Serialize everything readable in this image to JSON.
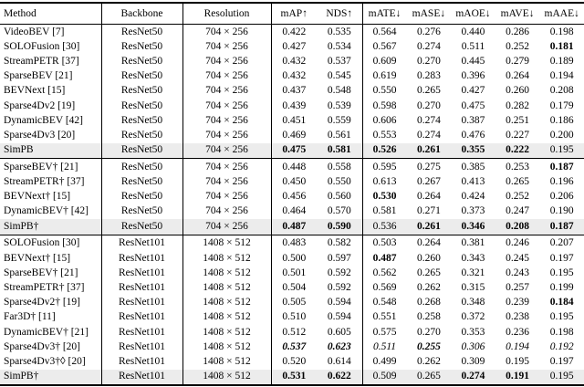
{
  "colors": {
    "highlight_row": "#ececec",
    "rule": "#000000",
    "text": "#000000",
    "background": "#ffffff"
  },
  "table": {
    "columns": [
      {
        "key": "method",
        "label": "Method"
      },
      {
        "key": "backbone",
        "label": "Backbone"
      },
      {
        "key": "resolution",
        "label": "Resolution"
      },
      {
        "key": "map",
        "label": "mAP↑"
      },
      {
        "key": "nds",
        "label": "NDS↑"
      },
      {
        "key": "mate",
        "label": "mATE↓"
      },
      {
        "key": "mase",
        "label": "mASE↓"
      },
      {
        "key": "maoe",
        "label": "mAOE↓"
      },
      {
        "key": "mave",
        "label": "mAVE↓"
      },
      {
        "key": "maae",
        "label": "mAAE↓"
      }
    ],
    "sections": [
      {
        "rows": [
          {
            "method": "VideoBEV [7]",
            "backbone": "ResNet50",
            "resolution": "704 × 256",
            "values": [
              "0.422",
              "0.535",
              "0.564",
              "0.276",
              "0.440",
              "0.286",
              "0.198"
            ],
            "styles": [
              "",
              "",
              "",
              "",
              "",
              "",
              ""
            ],
            "highlight": false
          },
          {
            "method": "SOLOFusion [30]",
            "backbone": "ResNet50",
            "resolution": "704 × 256",
            "values": [
              "0.427",
              "0.534",
              "0.567",
              "0.274",
              "0.511",
              "0.252",
              "0.181"
            ],
            "styles": [
              "",
              "",
              "",
              "",
              "",
              "",
              "b"
            ],
            "highlight": false
          },
          {
            "method": "StreamPETR [37]",
            "backbone": "ResNet50",
            "resolution": "704 × 256",
            "values": [
              "0.432",
              "0.537",
              "0.609",
              "0.270",
              "0.445",
              "0.279",
              "0.189"
            ],
            "styles": [
              "",
              "",
              "",
              "",
              "",
              "",
              ""
            ],
            "highlight": false
          },
          {
            "method": "SparseBEV [21]",
            "backbone": "ResNet50",
            "resolution": "704 × 256",
            "values": [
              "0.432",
              "0.545",
              "0.619",
              "0.283",
              "0.396",
              "0.264",
              "0.194"
            ],
            "styles": [
              "",
              "",
              "",
              "",
              "",
              "",
              ""
            ],
            "highlight": false
          },
          {
            "method": "BEVNext [15]",
            "backbone": "ResNet50",
            "resolution": "704 × 256",
            "values": [
              "0.437",
              "0.548",
              "0.550",
              "0.265",
              "0.427",
              "0.260",
              "0.208"
            ],
            "styles": [
              "",
              "",
              "",
              "",
              "",
              "",
              ""
            ],
            "highlight": false
          },
          {
            "method": "Sparse4Dv2 [19]",
            "backbone": "ResNet50",
            "resolution": "704 × 256",
            "values": [
              "0.439",
              "0.539",
              "0.598",
              "0.270",
              "0.475",
              "0.282",
              "0.179"
            ],
            "styles": [
              "",
              "",
              "",
              "",
              "",
              "",
              ""
            ],
            "highlight": false
          },
          {
            "method": "DynamicBEV [42]",
            "backbone": "ResNet50",
            "resolution": "704 × 256",
            "values": [
              "0.451",
              "0.559",
              "0.606",
              "0.274",
              "0.387",
              "0.251",
              "0.186"
            ],
            "styles": [
              "",
              "",
              "",
              "",
              "",
              "",
              ""
            ],
            "highlight": false
          },
          {
            "method": "Sparse4Dv3 [20]",
            "backbone": "ResNet50",
            "resolution": "704 × 256",
            "values": [
              "0.469",
              "0.561",
              "0.553",
              "0.274",
              "0.476",
              "0.227",
              "0.200"
            ],
            "styles": [
              "",
              "",
              "",
              "",
              "",
              "",
              ""
            ],
            "highlight": false
          },
          {
            "method": "SimPB",
            "backbone": "ResNet50",
            "resolution": "704 × 256",
            "values": [
              "0.475",
              "0.581",
              "0.526",
              "0.261",
              "0.355",
              "0.222",
              "0.195"
            ],
            "styles": [
              "b",
              "b",
              "b",
              "b",
              "b",
              "b",
              ""
            ],
            "highlight": true
          }
        ]
      },
      {
        "rows": [
          {
            "method": "SparseBEV† [21]",
            "backbone": "ResNet50",
            "resolution": "704 × 256",
            "values": [
              "0.448",
              "0.558",
              "0.595",
              "0.275",
              "0.385",
              "0.253",
              "0.187"
            ],
            "styles": [
              "",
              "",
              "",
              "",
              "",
              "",
              "b"
            ],
            "highlight": false
          },
          {
            "method": "StreamPETR† [37]",
            "backbone": "ResNet50",
            "resolution": "704 × 256",
            "values": [
              "0.450",
              "0.550",
              "0.613",
              "0.267",
              "0.413",
              "0.265",
              "0.196"
            ],
            "styles": [
              "",
              "",
              "",
              "",
              "",
              "",
              ""
            ],
            "highlight": false
          },
          {
            "method": "BEVNext† [15]",
            "backbone": "ResNet50",
            "resolution": "704 × 256",
            "values": [
              "0.456",
              "0.560",
              "0.530",
              "0.264",
              "0.424",
              "0.252",
              "0.206"
            ],
            "styles": [
              "",
              "",
              "b",
              "",
              "",
              "",
              ""
            ],
            "highlight": false
          },
          {
            "method": "DynamicBEV† [42]",
            "backbone": "ResNet50",
            "resolution": "704 × 256",
            "values": [
              "0.464",
              "0.570",
              "0.581",
              "0.271",
              "0.373",
              "0.247",
              "0.190"
            ],
            "styles": [
              "",
              "",
              "",
              "",
              "",
              "",
              ""
            ],
            "highlight": false
          },
          {
            "method": "SimPB†",
            "backbone": "ResNet50",
            "resolution": "704 × 256",
            "values": [
              "0.487",
              "0.590",
              "0.536",
              "0.261",
              "0.346",
              "0.208",
              "0.187"
            ],
            "styles": [
              "b",
              "b",
              "",
              "b",
              "b",
              "b",
              "b"
            ],
            "highlight": true
          }
        ]
      },
      {
        "rows": [
          {
            "method": "SOLOFusion [30]",
            "backbone": "ResNet101",
            "resolution": "1408 × 512",
            "values": [
              "0.483",
              "0.582",
              "0.503",
              "0.264",
              "0.381",
              "0.246",
              "0.207"
            ],
            "styles": [
              "",
              "",
              "",
              "",
              "",
              "",
              ""
            ],
            "highlight": false
          },
          {
            "method": "BEVNext† [15]",
            "backbone": "ResNet101",
            "resolution": "1408 × 512",
            "values": [
              "0.500",
              "0.597",
              "0.487",
              "0.260",
              "0.343",
              "0.245",
              "0.197"
            ],
            "styles": [
              "",
              "",
              "b",
              "",
              "",
              "",
              ""
            ],
            "highlight": false
          },
          {
            "method": "SparseBEV† [21]",
            "backbone": "ResNet101",
            "resolution": "1408 × 512",
            "values": [
              "0.501",
              "0.592",
              "0.562",
              "0.265",
              "0.321",
              "0.243",
              "0.195"
            ],
            "styles": [
              "",
              "",
              "",
              "",
              "",
              "",
              ""
            ],
            "highlight": false
          },
          {
            "method": "StreamPETR† [37]",
            "backbone": "ResNet101",
            "resolution": "1408 × 512",
            "values": [
              "0.504",
              "0.592",
              "0.569",
              "0.262",
              "0.315",
              "0.257",
              "0.199"
            ],
            "styles": [
              "",
              "",
              "",
              "",
              "",
              "",
              ""
            ],
            "highlight": false
          },
          {
            "method": "Sparse4Dv2† [19]",
            "backbone": "ResNet101",
            "resolution": "1408 × 512",
            "values": [
              "0.505",
              "0.594",
              "0.548",
              "0.268",
              "0.348",
              "0.239",
              "0.184"
            ],
            "styles": [
              "",
              "",
              "",
              "",
              "",
              "",
              "b"
            ],
            "highlight": false
          },
          {
            "method": "Far3D† [11]",
            "backbone": "ResNet101",
            "resolution": "1408 × 512",
            "values": [
              "0.510",
              "0.594",
              "0.551",
              "0.258",
              "0.372",
              "0.238",
              "0.195"
            ],
            "styles": [
              "",
              "",
              "",
              "",
              "",
              "",
              ""
            ],
            "highlight": false
          },
          {
            "method": "DynamicBEV† [21]",
            "backbone": "ResNet101",
            "resolution": "1408 × 512",
            "values": [
              "0.512",
              "0.605",
              "0.575",
              "0.270",
              "0.353",
              "0.236",
              "0.198"
            ],
            "styles": [
              "",
              "",
              "",
              "",
              "",
              "",
              ""
            ],
            "highlight": false
          },
          {
            "method": "Sparse4Dv3† [20]",
            "backbone": "ResNet101",
            "resolution": "1408 × 512",
            "values": [
              "0.537",
              "0.623",
              "0.511",
              "0.255",
              "0.306",
              "0.194",
              "0.192"
            ],
            "styles": [
              "bi",
              "bi",
              "i",
              "bi",
              "i",
              "i",
              "i"
            ],
            "highlight": false
          },
          {
            "method": "Sparse4Dv3†◊ [20]",
            "backbone": "ResNet101",
            "resolution": "1408 × 512",
            "values": [
              "0.520",
              "0.614",
              "0.499",
              "0.262",
              "0.309",
              "0.195",
              "0.197"
            ],
            "styles": [
              "",
              "",
              "",
              "",
              "",
              "",
              ""
            ],
            "highlight": false
          },
          {
            "method": "SimPB†",
            "backbone": "ResNet101",
            "resolution": "1408 × 512",
            "values": [
              "0.531",
              "0.622",
              "0.509",
              "0.265",
              "0.274",
              "0.191",
              "0.195"
            ],
            "styles": [
              "b",
              "b",
              "",
              "",
              "b",
              "b",
              ""
            ],
            "highlight": true
          }
        ]
      }
    ]
  }
}
